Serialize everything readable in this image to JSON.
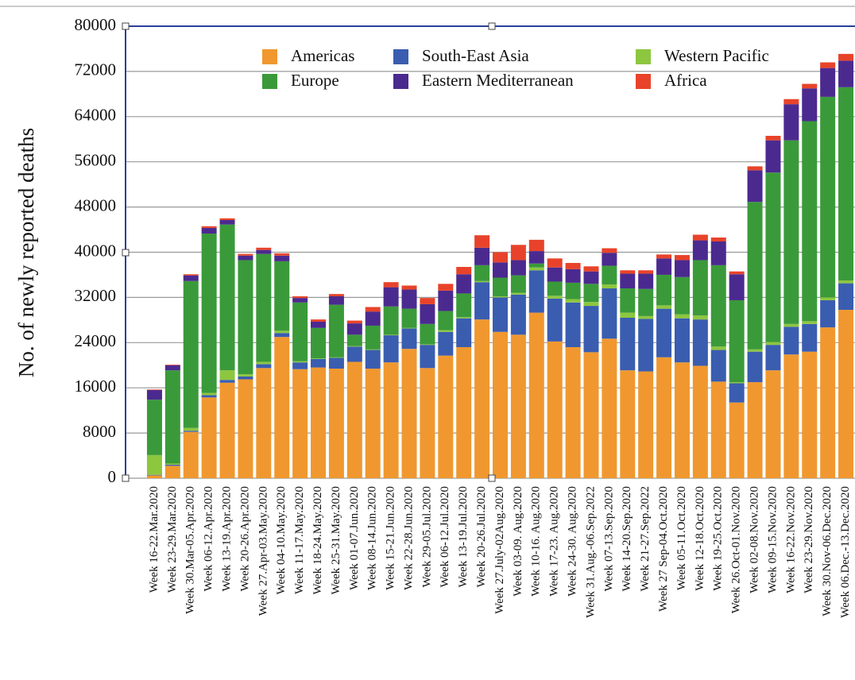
{
  "chart_data": {
    "type": "stacked_bar",
    "y_label": "No. of newly reported deaths",
    "categories": [
      "Week 16-22.Mar.2020",
      "Week 23-29.Mar.2020",
      "Week 30.Mar-05.Apr.2020",
      "Week 06-12.Apr.2020",
      "Week 13-19.Apr.2020",
      "Week 20-26.Apr.2020",
      "Week 27.Apr-03.May.2020",
      "Week 04-10.May.2020",
      "Week 11-17.May.2020",
      "Week 18-24.May.2020",
      "Week 25-31.May.2020",
      "Week 01-07.Jun.2020",
      "Week 08-14.Jun.2020",
      "Week 15-21.Jun.2020",
      "Week 22-28.Jun.2020",
      "Week 29-05.Jul.2020",
      "Week 06-12.Jul.2020",
      "Week 13-19.Jul.2020",
      "Week 20-26.Jul.2020",
      "Week 27.July-02Aug.2020",
      "Week 03-09. Aug.2020",
      "Week 10-16. Aug.2020",
      "Week 17-23. Aug.2020",
      "Week 24-30. Aug.2020",
      "Week 31.Aug.-06.Sep.2022",
      "Week 07-13.Sep.2020",
      "Week 14-20.Sep.2020",
      "Week 21-27.Sep.2022",
      "Week 27 Sep-04.Oct.2020",
      "Week 05-11.Oct.2020",
      "Week 12-18.Oct.2020",
      "Week 19-25.Oct.2020",
      "Week 26.Oct-01.Nov.2020",
      "Week 02-08.Nov.2020",
      "Week 09-15.Nov.2020",
      "Week 16-22.Nov.2020",
      "Week 23-29.Nov.2020",
      "Week 30.Nov-06.Dec.2020",
      "Week 06.Dec.-13.Dec.2020"
    ],
    "series": [
      {
        "name": "Americas",
        "color": "#f0982f",
        "values": [
          500,
          2200,
          8200,
          14300,
          16900,
          17500,
          19500,
          25000,
          19300,
          19600,
          19400,
          20600,
          19400,
          20500,
          22900,
          19500,
          21700,
          23200,
          28100,
          25900,
          25400,
          29300,
          24200,
          23200,
          22300,
          24700,
          19100,
          18900,
          21400,
          20500,
          19900,
          17100,
          13400,
          17000,
          19100,
          21900,
          22400,
          26700,
          29800
        ]
      },
      {
        "name": "South-East Asia",
        "color": "#3a5db0",
        "values": [
          100,
          200,
          200,
          400,
          500,
          500,
          700,
          700,
          1200,
          1500,
          1900,
          2700,
          3300,
          4800,
          3600,
          4100,
          4200,
          5100,
          6600,
          6100,
          7100,
          7500,
          7600,
          7900,
          8200,
          8900,
          9300,
          9300,
          8600,
          7800,
          8200,
          5600,
          3400,
          5400,
          4500,
          4900,
          4900,
          4800,
          4700
        ]
      },
      {
        "name": "Western Pacific",
        "color": "#8dc63f",
        "values": [
          3500,
          200,
          500,
          400,
          1700,
          400,
          400,
          400,
          200,
          100,
          100,
          100,
          100,
          100,
          100,
          100,
          300,
          200,
          200,
          200,
          300,
          500,
          500,
          600,
          700,
          700,
          900,
          500,
          600,
          700,
          700,
          600,
          200,
          400,
          500,
          500,
          500,
          500,
          500
        ]
      },
      {
        "name": "Europe",
        "color": "#3a9a3a",
        "values": [
          9800,
          16500,
          26000,
          28200,
          25800,
          20200,
          19100,
          12300,
          10400,
          5400,
          9300,
          2000,
          4200,
          5000,
          3400,
          3600,
          3400,
          4200,
          2800,
          3300,
          3100,
          700,
          2500,
          2900,
          3200,
          3300,
          4300,
          4800,
          5400,
          6600,
          9800,
          14400,
          14500,
          26100,
          30000,
          32500,
          35400,
          35500,
          34200
        ]
      },
      {
        "name": "Eastern Mediterranean",
        "color": "#4b2a8f",
        "values": [
          1700,
          900,
          1000,
          1000,
          800,
          800,
          700,
          1000,
          800,
          1100,
          1500,
          2000,
          2500,
          3400,
          3400,
          3500,
          3600,
          3400,
          3100,
          2700,
          2700,
          2200,
          2500,
          2400,
          2200,
          2300,
          2600,
          2700,
          2900,
          3000,
          3500,
          4200,
          4600,
          5600,
          5700,
          6400,
          5800,
          5100,
          4700
        ]
      },
      {
        "name": "Africa",
        "color": "#e8432a",
        "values": [
          100,
          100,
          200,
          300,
          300,
          300,
          400,
          400,
          300,
          400,
          400,
          500,
          800,
          900,
          700,
          1100,
          1200,
          1300,
          2200,
          1800,
          2700,
          2000,
          1600,
          1100,
          900,
          800,
          600,
          600,
          700,
          900,
          1000,
          700,
          500,
          700,
          800,
          900,
          800,
          1000,
          1200
        ]
      }
    ],
    "ylim": [
      0,
      80000
    ],
    "yticks": [
      0,
      8000,
      16000,
      24000,
      32000,
      40000,
      48000,
      56000,
      64000,
      72000,
      80000
    ],
    "grid": true
  }
}
